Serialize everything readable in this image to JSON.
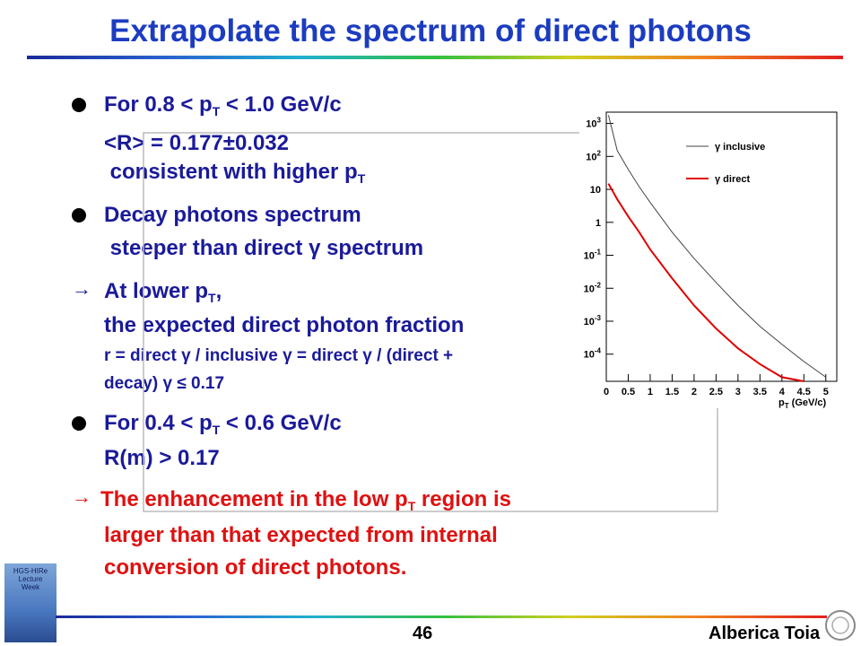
{
  "title": "Extrapolate the spectrum of direct photons",
  "bullets": [
    {
      "lines": [
        [
          "For 0.8 < p",
          "T",
          " < 1.0 GeV/c"
        ],
        [
          "<R> = 0.177±0.032"
        ],
        [
          " consistent with higher p",
          "T"
        ]
      ]
    },
    {
      "lines": [
        [
          "Decay photons spectrum"
        ],
        [
          " steeper than direct γ spectrum"
        ]
      ]
    },
    {
      "lines": [
        [
          "At lower p",
          "T",
          ","
        ],
        [
          "the expected direct photon fraction"
        ],
        [
          "r = direct γ / inclusive γ = direct γ / (direct +"
        ],
        [
          "decay) γ ≤ 0.17"
        ]
      ]
    },
    {
      "lines": [
        [
          "For 0.4 < p",
          "T",
          " < 0.6 GeV/c"
        ],
        [
          "R(m) > 0.17"
        ]
      ]
    },
    {
      "lines": [
        [
          "The enhancement in the low p",
          "T",
          " region is"
        ],
        [
          "larger than that expected from internal"
        ],
        [
          "conversion of direct photons."
        ]
      ]
    }
  ],
  "footer": {
    "page": "46",
    "author": "Alberica Toia",
    "logo": [
      "HGS-HIRe",
      "Lecture",
      "Week"
    ]
  },
  "chart_data": {
    "type": "line",
    "log_y": true,
    "xlabel": [
      "p",
      "T",
      " (GeV/c)"
    ],
    "xlim": [
      0,
      5.25
    ],
    "xticks": [
      0,
      0.5,
      1,
      1.5,
      2,
      2.5,
      3,
      3.5,
      4,
      4.5,
      5
    ],
    "ylim": [
      1.5e-05,
      2200
    ],
    "yticks": [
      {
        "value": 0.0001,
        "label": "10-4"
      },
      {
        "value": 0.001,
        "label": "10-3"
      },
      {
        "value": 0.01,
        "label": "10-2"
      },
      {
        "value": 0.1,
        "label": "10-1"
      },
      1,
      10,
      {
        "value": 100,
        "label": "102"
      },
      {
        "value": 1000,
        "label": "103"
      }
    ],
    "x": [
      0.05,
      0.25,
      0.5,
      0.75,
      1,
      1.5,
      2,
      2.5,
      3,
      3.5,
      4,
      4.5,
      5
    ],
    "series": [
      {
        "name": "γ inclusive",
        "color": "#444444",
        "values": [
          1800,
          150,
          40,
          12,
          4,
          0.5,
          0.08,
          0.015,
          0.003,
          0.0007,
          0.0002,
          6e-05,
          2e-05
        ]
      },
      {
        "name": "γ direct",
        "color": "#e00000",
        "values": [
          15,
          5,
          1.5,
          0.5,
          0.15,
          0.02,
          0.003,
          0.0006,
          0.00015,
          5e-05,
          2e-05,
          1.5e-05,
          null
        ]
      }
    ]
  }
}
